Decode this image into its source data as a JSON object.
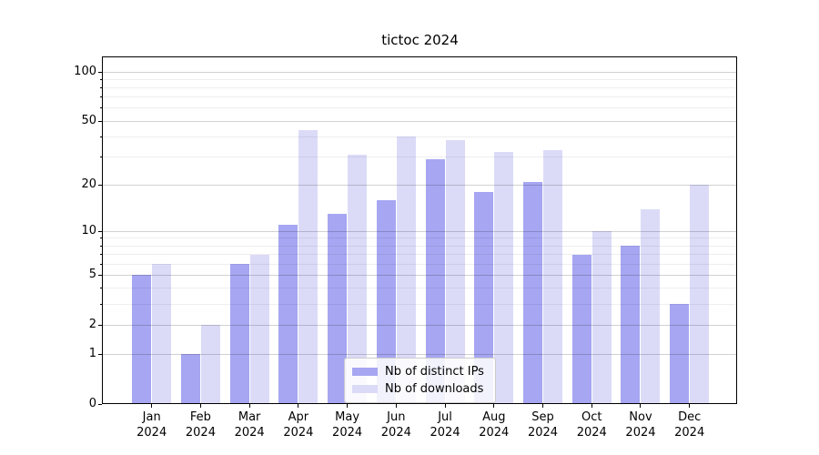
{
  "title": "tictoc 2024",
  "chart_data": {
    "type": "bar",
    "title": "tictoc 2024",
    "categories": [
      {
        "month": "Jan",
        "year": "2024"
      },
      {
        "month": "Feb",
        "year": "2024"
      },
      {
        "month": "Mar",
        "year": "2024"
      },
      {
        "month": "Apr",
        "year": "2024"
      },
      {
        "month": "May",
        "year": "2024"
      },
      {
        "month": "Jun",
        "year": "2024"
      },
      {
        "month": "Jul",
        "year": "2024"
      },
      {
        "month": "Aug",
        "year": "2024"
      },
      {
        "month": "Sep",
        "year": "2024"
      },
      {
        "month": "Oct",
        "year": "2024"
      },
      {
        "month": "Nov",
        "year": "2024"
      },
      {
        "month": "Dec",
        "year": "2024"
      }
    ],
    "series": [
      {
        "name": "Nb of distinct IPs",
        "color": "#a6a6f2",
        "values": [
          5,
          1,
          6,
          11,
          13,
          16,
          29,
          18,
          21,
          7,
          8,
          3
        ]
      },
      {
        "name": "Nb of downloads",
        "color": "#dbdbf8",
        "values": [
          6,
          2,
          7,
          44,
          31,
          40,
          38,
          32,
          33,
          10,
          14,
          20
        ]
      }
    ],
    "yscale": "log1p",
    "y_major_ticks": [
      0,
      1,
      2,
      5,
      10,
      20,
      50,
      100
    ],
    "y_minor_ticks": [
      3,
      4,
      6,
      7,
      8,
      9,
      30,
      40,
      60,
      70,
      80,
      90
    ],
    "ylim": [
      0,
      122
    ],
    "xlabel": "",
    "ylabel": "",
    "grid": true,
    "grid_above_bars": true,
    "legend_position": "lower-center"
  },
  "legend": {
    "items": [
      {
        "label": "Nb of distinct IPs"
      },
      {
        "label": "Nb of downloads"
      }
    ]
  }
}
